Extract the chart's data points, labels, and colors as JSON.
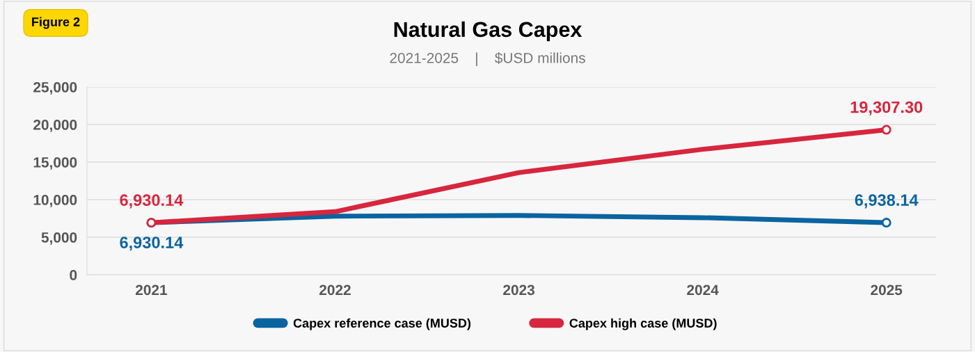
{
  "chart_data": {
    "type": "line",
    "title": "Natural Gas Capex",
    "subtitle": "2021-2025    |    $USD millions",
    "annotations": [
      "Figure 2"
    ],
    "categories": [
      "2021",
      "2022",
      "2023",
      "2024",
      "2025"
    ],
    "series": [
      {
        "name": "Capex reference case (MUSD)",
        "color": "#0a64a0",
        "values": [
          6930.14,
          7800,
          7900,
          7600,
          6938.14
        ],
        "value_labels": [
          "6,930.14",
          null,
          null,
          null,
          "6,938.14"
        ]
      },
      {
        "name": "Capex high case (MUSD)",
        "color": "#d7263d",
        "values": [
          6930.14,
          8400,
          13600,
          16700,
          19307.3
        ],
        "value_labels": [
          "6,930.14",
          null,
          null,
          null,
          "19,307.30"
        ]
      }
    ],
    "ylim": [
      0,
      25000
    ],
    "yticks": [
      {
        "value": 0,
        "label": "0"
      },
      {
        "value": 5000,
        "label": "5,000"
      },
      {
        "value": 10000,
        "label": "10,000"
      },
      {
        "value": 15000,
        "label": "15,000"
      },
      {
        "value": 20000,
        "label": "20,000"
      },
      {
        "value": 25000,
        "label": "25,000"
      }
    ],
    "grid": "y",
    "legend": "bottom",
    "line_style": "solid"
  }
}
